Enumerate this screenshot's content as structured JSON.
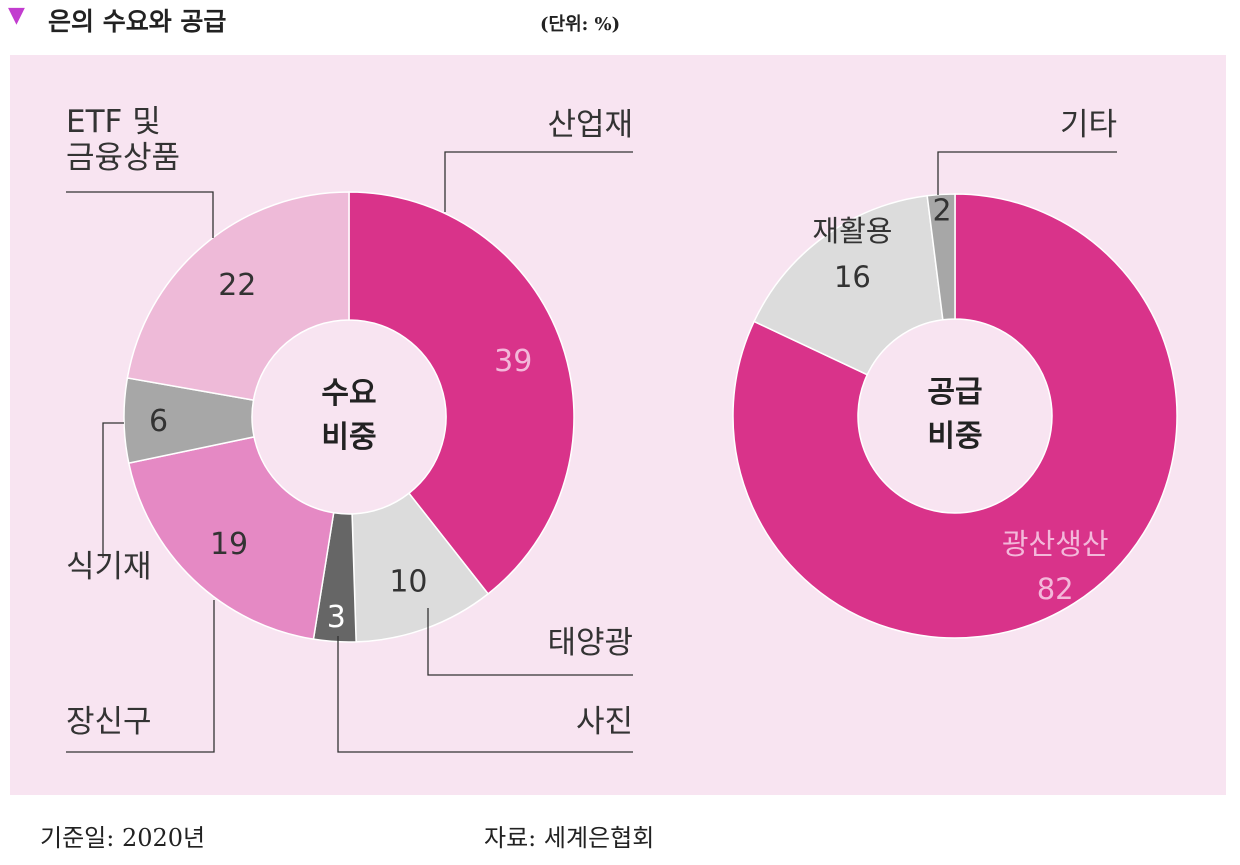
{
  "header": {
    "marker": "▼",
    "title": "은의 수요와 공급",
    "unit": "(단위: %)"
  },
  "footer": {
    "basis_date": "기준일: 2020년",
    "source": "자료: 세계은협회"
  },
  "colors": {
    "panel_bg": "#f8e4f1",
    "marker": "#c23ccf",
    "magenta": "#d9338a",
    "pink_light": "#eebad8",
    "pink_mid": "#e589c4",
    "gray": "#a7a7a7",
    "gray_light": "#dcdcdc",
    "gray_dark": "#666666",
    "label_on_magenta": "#f3b8da",
    "text": "#333333"
  },
  "chart_data": [
    {
      "type": "pie",
      "center_label": [
        "수요",
        "비중"
      ],
      "slices": [
        {
          "label": "산업재",
          "value": 39,
          "color": "#d9338a",
          "value_color": "#f3b8da"
        },
        {
          "label": "태양광",
          "value": 10,
          "color": "#dcdcdc",
          "value_color": "#333333"
        },
        {
          "label": "사진",
          "value": 3,
          "color": "#666666",
          "value_color": "#ffffff"
        },
        {
          "label": "장신구",
          "value": 19,
          "color": "#e589c4",
          "value_color": "#333333"
        },
        {
          "label": "식기재",
          "value": 6,
          "color": "#a7a7a7",
          "value_color": "#333333"
        },
        {
          "label": "ETF 및\n금융상품",
          "value": 22,
          "color": "#eebad8",
          "value_color": "#333333"
        }
      ]
    },
    {
      "type": "pie",
      "center_label": [
        "공급",
        "비중"
      ],
      "slices": [
        {
          "label": "광산생산",
          "value": 82,
          "color": "#d9338a",
          "value_color": "#f3b8da"
        },
        {
          "label": "재활용",
          "value": 16,
          "color": "#dcdcdc",
          "value_color": "#333333"
        },
        {
          "label": "기타",
          "value": 2,
          "color": "#a7a7a7",
          "value_color": "#333333"
        }
      ]
    }
  ]
}
